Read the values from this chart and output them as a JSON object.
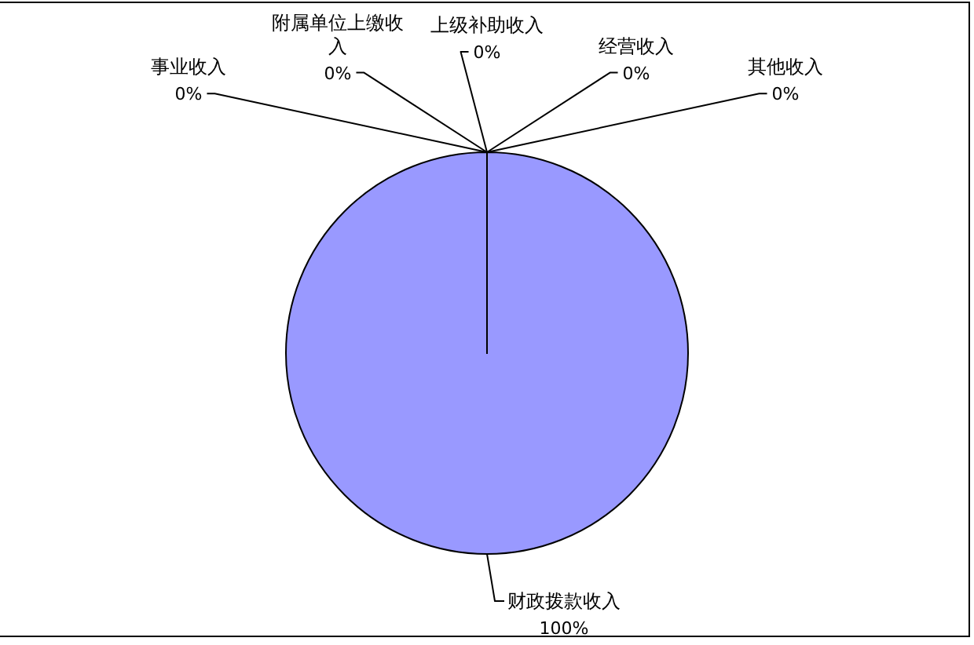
{
  "chart_data": {
    "type": "pie",
    "categories": [
      "财政拨款收入",
      "事业收入",
      "附属单位上缴收入",
      "上级补助收入",
      "经营收入",
      "其他收入"
    ],
    "values": [
      100,
      0,
      0,
      0,
      0,
      0
    ],
    "colors": [
      "#9999ff",
      "#993366",
      "#ffffcc",
      "#ccffff",
      "#660066",
      "#ff8080"
    ],
    "value_labels": [
      "100%",
      "0%",
      "0%",
      "0%",
      "0%",
      "0%"
    ]
  }
}
